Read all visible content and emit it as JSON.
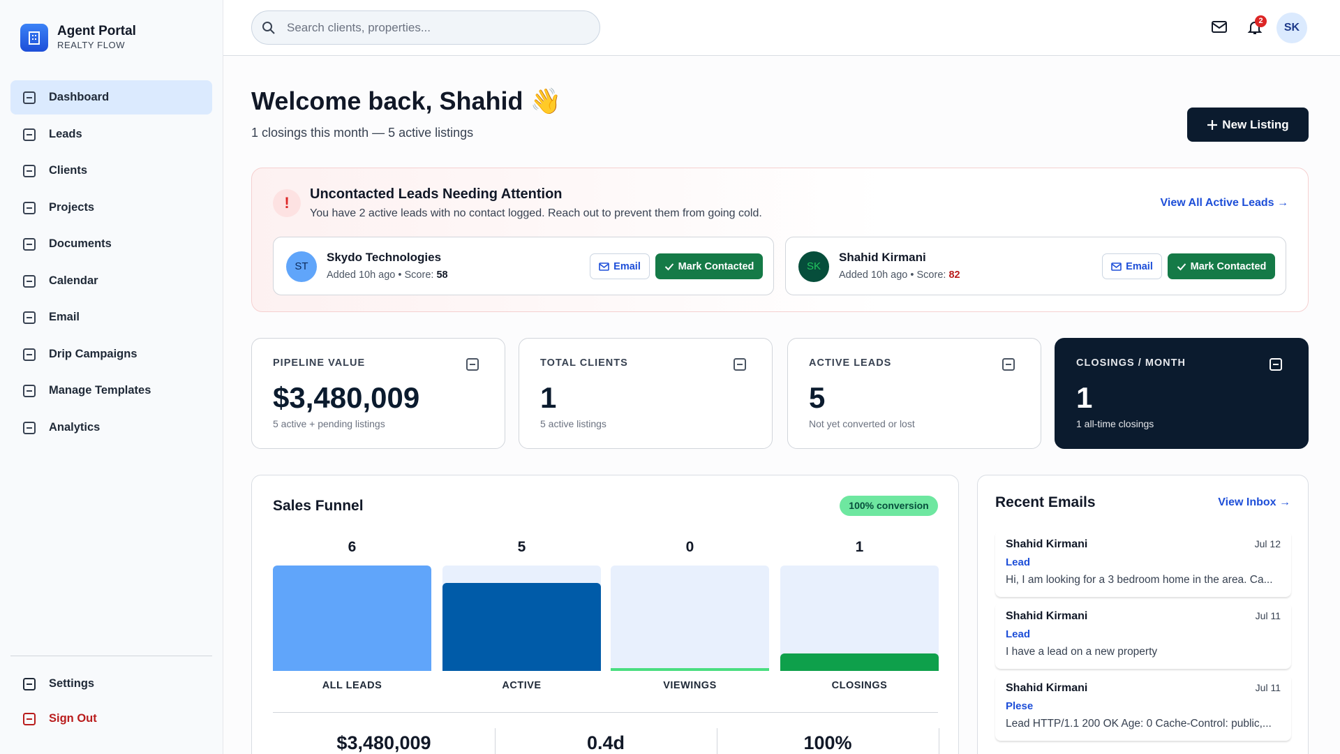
{
  "sidebar": {
    "brand": {
      "title": "Agent Portal",
      "subtitle": "REALTY FLOW"
    },
    "nav": [
      "Dashboard",
      "Leads",
      "Clients",
      "Projects",
      "Documents",
      "Calendar",
      "Email",
      "Drip Campaigns",
      "Manage Templates",
      "Analytics"
    ],
    "footer": [
      "Settings",
      "Sign Out"
    ]
  },
  "header": {
    "search_placeholder": "Search clients, properties...",
    "notification_count": 2,
    "avatar": "SK"
  },
  "welcome": {
    "title": "Welcome back, Shahid 👋",
    "subtitle": "1 closings this month — 5 active listings",
    "button": "New Listing"
  },
  "alert": {
    "icon": "!",
    "title": "Uncontacted Leads Needing Attention",
    "text": "You have 2 active leads with no contact logged. Reach out to prevent them from going cold.",
    "link": "View All Active Leads →",
    "leads": [
      {
        "initials": "ST",
        "name": "Skydo Technologies",
        "meta": "Added 10h ago • Score:",
        "score": 58,
        "score_color": "#111827",
        "email": "Email",
        "action": "Mark Contacted"
      },
      {
        "initials": "SK",
        "name": "Shahid Kirmani",
        "meta": "Added 10h ago • Score:",
        "score": 82,
        "score_color": "#b91c1c",
        "email": "Email",
        "action": "Mark Contacted"
      }
    ]
  },
  "stats": [
    {
      "label": "PIPELINE VALUE",
      "value": "$3,480,009",
      "note": "5 active + pending listings"
    },
    {
      "label": "TOTAL CLIENTS",
      "value": "1",
      "note": "5 active listings"
    },
    {
      "label": "ACTIVE LEADS",
      "value": "5",
      "note": "Not yet converted or lost"
    },
    {
      "label": "CLOSINGS / MONTH",
      "value": "1",
      "note": "1 all-time closings"
    }
  ],
  "funnel": {
    "title": "Sales Funnel",
    "badge": "100% conversion",
    "stages": [
      {
        "label": "ALL LEADS",
        "value": 6,
        "color": "#60a5fa"
      },
      {
        "label": "ACTIVE",
        "value": 5,
        "color": "#005ba8"
      },
      {
        "label": "VIEWINGS",
        "value": 0,
        "color": "#4ade80"
      },
      {
        "label": "CLOSINGS",
        "value": 1,
        "color": "#0ea04b"
      }
    ],
    "summary": [
      "$3,480,009",
      "0.4d",
      "100%"
    ]
  },
  "emails": {
    "title": "Recent Emails",
    "link": "View Inbox →",
    "items": [
      {
        "from": "Shahid Kirmani",
        "date": "Jul 12",
        "tag": "Lead",
        "preview": "Hi, I am looking for a 3 bedroom home in the area. Ca..."
      },
      {
        "from": "Shahid Kirmani",
        "date": "Jul 11",
        "tag": "Lead",
        "preview": "I have a lead on a new property"
      },
      {
        "from": "Shahid Kirmani",
        "date": "Jul 11",
        "tag": "Plese",
        "preview": "Lead HTTP/1.1 200 OK Age: 0 Cache-Control: public,..."
      }
    ]
  }
}
